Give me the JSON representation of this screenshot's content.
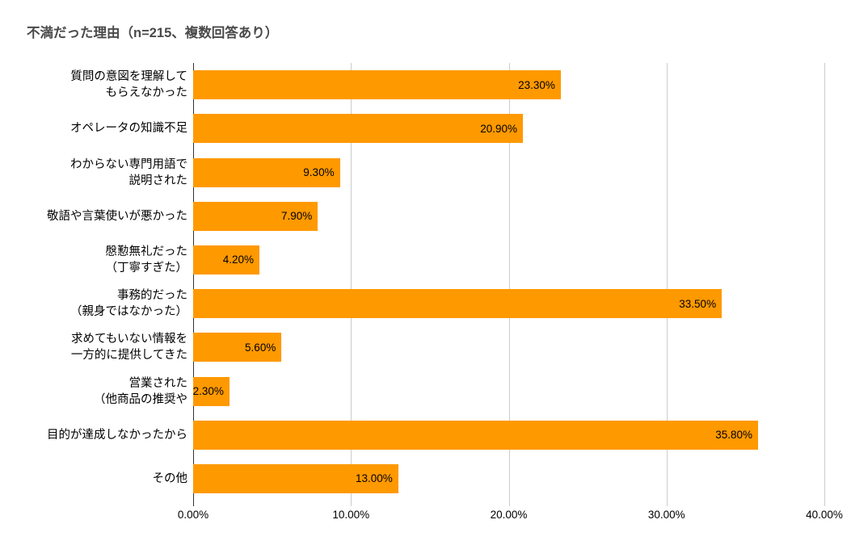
{
  "title": "不満だった理由（n=215、複数回答あり）",
  "chart_data": {
    "type": "bar",
    "orientation": "horizontal",
    "title": "不満だった理由（n=215、複数回答あり）",
    "sample_size_note": "n=215、複数回答あり",
    "categories": [
      [
        "質問の意図を理解して",
        "もらえなかった"
      ],
      [
        "オペレータの知識不足"
      ],
      [
        "わからない専門用語で",
        "説明された"
      ],
      [
        "敬語や言葉使いが悪かった"
      ],
      [
        "慇懃無礼だった",
        "（丁寧すぎた）"
      ],
      [
        "事務的だった",
        "（親身ではなかった）"
      ],
      [
        "求めてもいない情報を",
        "一方的に提供してきた"
      ],
      [
        "営業された",
        "（他商品の推奨や"
      ],
      [
        "目的が達成しなかったから"
      ],
      [
        "その他"
      ]
    ],
    "values": [
      23.3,
      20.9,
      9.3,
      7.9,
      4.2,
      33.5,
      5.6,
      2.3,
      35.8,
      13.0
    ],
    "value_labels": [
      "23.30%",
      "20.90%",
      "9.30%",
      "7.90%",
      "4.20%",
      "33.50%",
      "5.60%",
      "2.30%",
      "35.80%",
      "13.00%"
    ],
    "x_axis": {
      "min": 0,
      "max": 40,
      "tick_values": [
        0,
        10,
        20,
        30,
        40
      ],
      "tick_labels": [
        "0.00%",
        "10.00%",
        "20.00%",
        "30.00%",
        "40.00%"
      ]
    },
    "grid": "vertical-only",
    "legend": "none",
    "colors": {
      "bar": "#FF9900",
      "gridline": "#cccccc",
      "axis_baseline": "#333333",
      "title_text": "#4a4a4a",
      "label_text": "#000000"
    }
  }
}
